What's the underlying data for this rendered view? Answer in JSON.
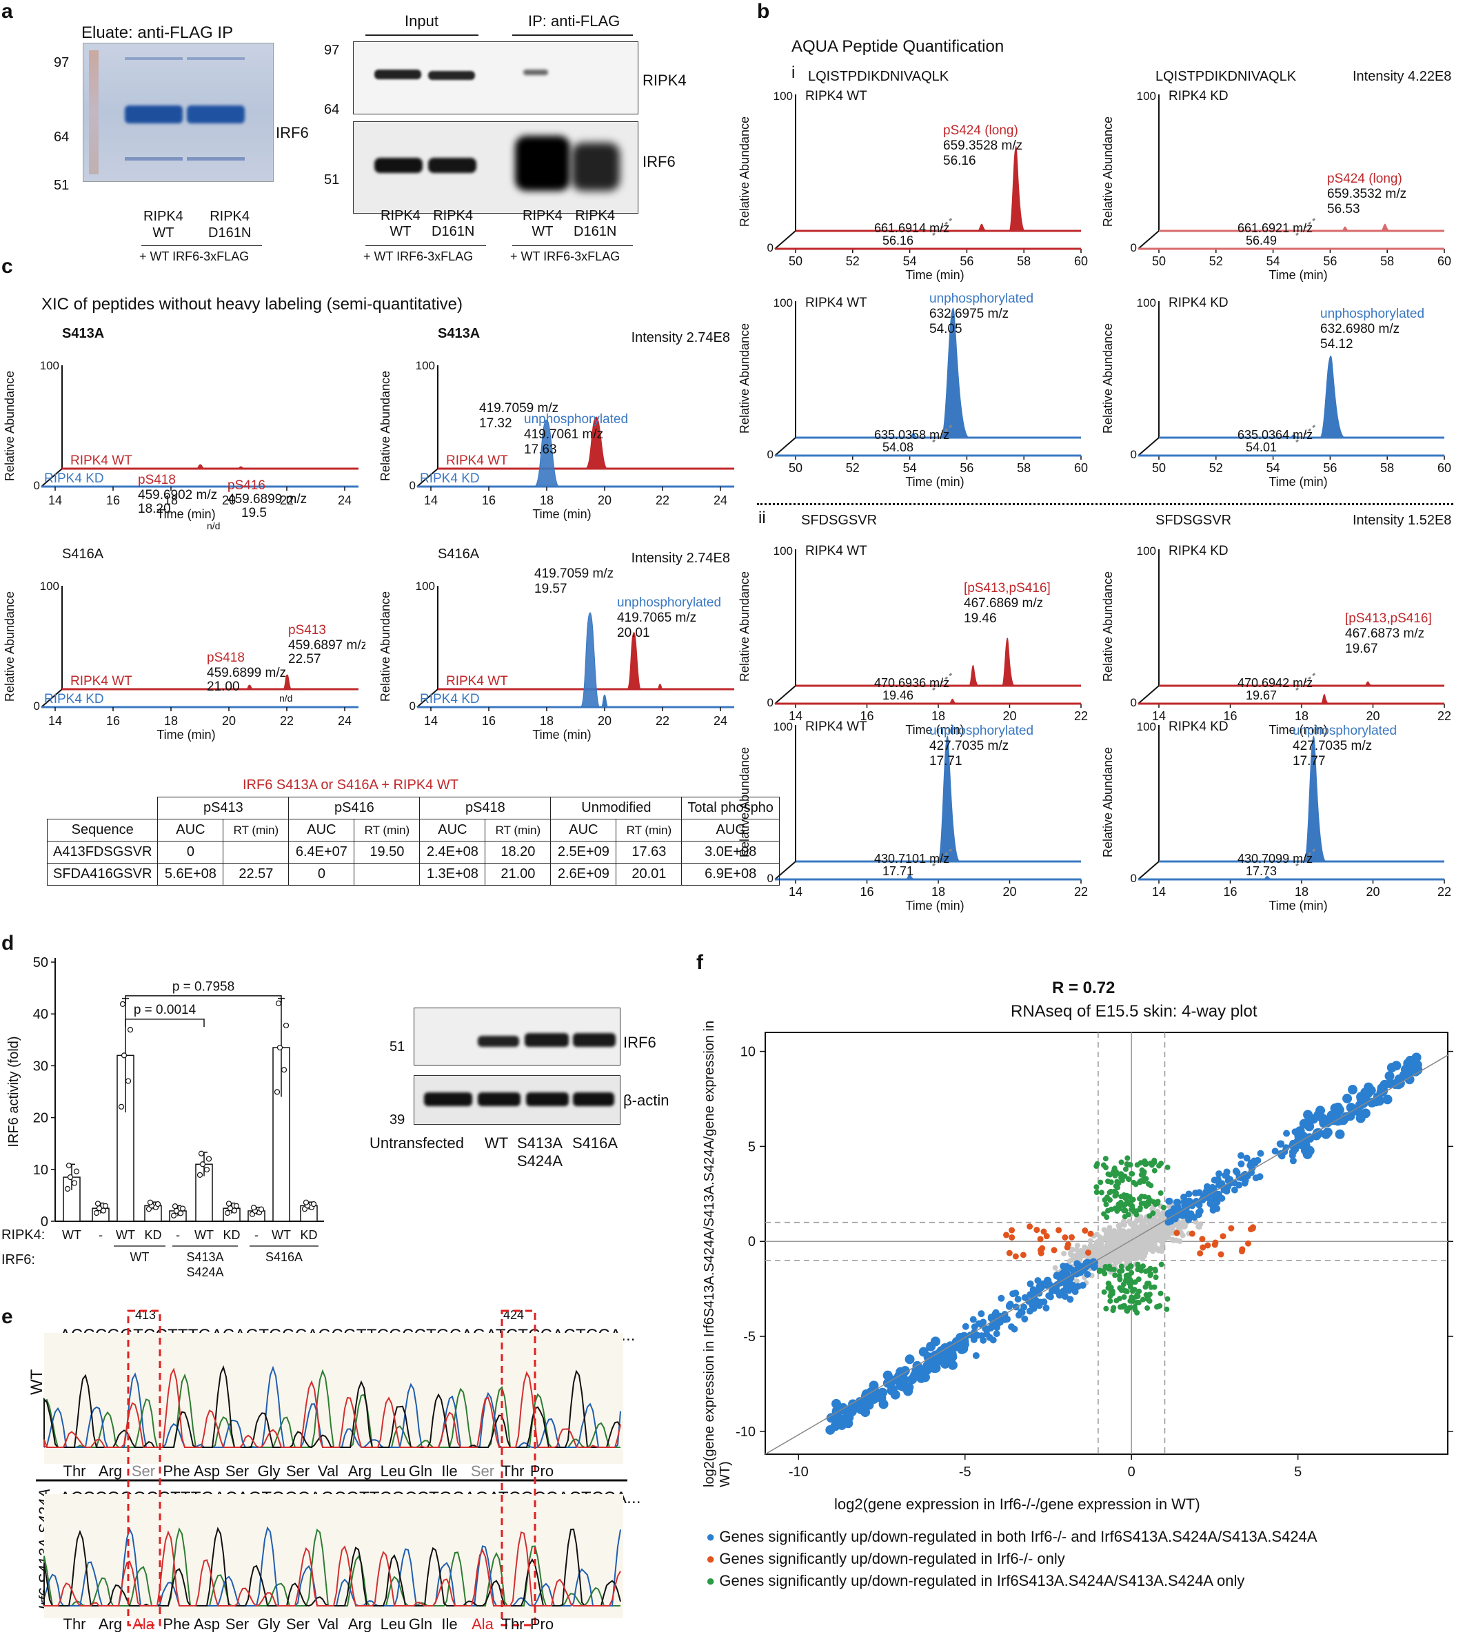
{
  "panel_letters": {
    "a": "a",
    "b": "b",
    "c": "c",
    "d": "d",
    "e": "e",
    "f": "f"
  },
  "a": {
    "gel_title": "Eluate: anti-FLAG IP",
    "gel_markers": [
      "97",
      "64",
      "51"
    ],
    "gel_band": "IRF6",
    "gel_lanes": [
      "RIPK4\nWT",
      "RIPK4\nD161N"
    ],
    "gel_footer": "+ WT IRF6-3xFLAG",
    "wb_headers": [
      "Input",
      "IP: anti-FLAG"
    ],
    "wb_markers_top": [
      "97",
      "64"
    ],
    "wb_marker_bottom": "51",
    "wb_bands": [
      "RIPK4",
      "IRF6"
    ],
    "wb_lane_labels": [
      "RIPK4",
      "RIPK4",
      "RIPK4",
      "RIPK4"
    ],
    "wb_lane_labels2": [
      "WT",
      "D161N",
      "WT",
      "D161N"
    ],
    "wb_footers": [
      "+ WT IRF6-3xFLAG",
      "+ WT IRF6-3xFLAG"
    ]
  },
  "b": {
    "title": "AQUA Peptide Quantification",
    "sec_i": "i",
    "sec_ii": "ii",
    "pep1": "LQISTPDIKDNIVAQLK",
    "pep2": "SFDSGSVR",
    "int1": "Intensity 4.22E8",
    "int2": "Intensity 1.52E8",
    "ylab": "Relative Abundance",
    "xlab": "Time (min)",
    "plots": [
      {
        "cond": "RIPK4 WT",
        "hi": "pS424 (long)",
        "hi_mz": "659.3528 m/z",
        "hi_rt": "56.16",
        "lo_mz": "661.6914 m/z",
        "lo_rt": "56.16"
      },
      {
        "cond": "RIPK4 KD",
        "hi": "pS424 (long)",
        "hi_mz": "659.3532 m/z",
        "hi_rt": "56.53",
        "lo_mz": "661.6921 m/z",
        "lo_rt": "56.49"
      },
      {
        "cond": "RIPK4 WT",
        "hi": "unphosphorylated",
        "hi_mz": "632.6975 m/z",
        "hi_rt": "54.05",
        "lo_mz": "635.0358 m/z",
        "lo_rt": "54.08"
      },
      {
        "cond": "RIPK4 KD",
        "hi": "unphosphorylated",
        "hi_mz": "632.6980 m/z",
        "hi_rt": "54.12",
        "lo_mz": "635.0364 m/z",
        "lo_rt": "54.01"
      },
      {
        "cond": "RIPK4 WT",
        "hi": "[pS413,pS416]",
        "hi_mz": "467.6869 m/z",
        "hi_rt": "19.46",
        "lo_mz": "470.6936 m/z",
        "lo_rt": "19.46"
      },
      {
        "cond": "RIPK4 KD",
        "hi": "[pS413,pS416]",
        "hi_mz": "467.6873 m/z",
        "hi_rt": "19.67",
        "lo_mz": "470.6942 m/z",
        "lo_rt": "19.67"
      },
      {
        "cond": "RIPK4 WT",
        "hi": "unphosphorylated",
        "hi_mz": "427.7035 m/z",
        "hi_rt": "17.71",
        "lo_mz": "430.7101 m/z",
        "lo_rt": "17.71"
      },
      {
        "cond": "RIPK4 KD",
        "hi": "unphosphorylated",
        "hi_mz": "427.7035 m/z",
        "hi_rt": "17.77",
        "lo_mz": "430.7099 m/z",
        "lo_rt": "17.73"
      }
    ],
    "xticks_i": [
      "50",
      "52",
      "54",
      "56",
      "58",
      "60"
    ],
    "xticks_ii": [
      "14",
      "16",
      "18",
      "20",
      "22"
    ],
    "y100": "100",
    "y0": "0"
  },
  "c": {
    "title": "XIC of peptides without heavy labeling (semi-quantitative)",
    "s413": "S413A",
    "s416": "S416A",
    "intensity": "Intensity 2.74E8",
    "ylab": "Relative Abundance",
    "xlab": "Time (min)",
    "wt": "RIPK4 WT",
    "kd": "RIPK4 KD",
    "nd": "n/d",
    "xticks": [
      "14",
      "16",
      "18",
      "20",
      "22",
      "24"
    ],
    "p1": {
      "a": "pS418",
      "a_mz": "459.6902 m/z",
      "a_rt": "18.20",
      "b": "pS416",
      "b_mz": "459.6899 m/z",
      "b_rt": "19.5"
    },
    "p2": {
      "a_mz": "419.7059 m/z",
      "a_rt": "17.32",
      "b": "unphosphorylated",
      "b_mz": "419.7061 m/z",
      "b_rt": "17.63"
    },
    "p3": {
      "a": "pS418",
      "a_mz": "459.6899 m/z",
      "a_rt": "21.00",
      "b": "pS413",
      "b_mz": "459.6897 m/z",
      "b_rt": "22.57"
    },
    "p4": {
      "a_mz": "419.7059 m/z",
      "a_rt": "19.57",
      "b": "unphosphorylated",
      "b_mz": "419.7065 m/z",
      "b_rt": "20.01"
    },
    "table_title": "IRF6 S413A or S416A + RIPK4 WT",
    "table_head1": [
      "pS413",
      "pS416",
      "pS418",
      "Unmodified",
      "Total phospho"
    ],
    "table_head2": [
      "Sequence",
      "AUC",
      "RT (min)",
      "AUC",
      "RT (min)",
      "AUC",
      "RT (min)",
      "AUC",
      "RT (min)",
      "AUC"
    ],
    "rows": [
      [
        "A413FDSGSVR",
        "0",
        "",
        "6.4E+07",
        "19.50",
        "2.4E+08",
        "18.20",
        "2.5E+09",
        "17.63",
        "3.0E+08"
      ],
      [
        "SFDA416GSVR",
        "5.6E+08",
        "22.57",
        "0",
        "",
        "1.3E+08",
        "21.00",
        "2.6E+09",
        "20.01",
        "6.9E+08"
      ]
    ]
  },
  "d": {
    "ylabel": "IRF6 activity (fold)",
    "yticks": [
      "0",
      "10",
      "20",
      "30",
      "40",
      "50"
    ],
    "p1": "p = 0.7958",
    "p2": "p = 0.0014",
    "ripk4_label": "RIPK4:",
    "irf6_label": "IRF6:",
    "ripk4": [
      "WT",
      "-",
      "WT",
      "KD",
      "-",
      "WT",
      "KD",
      "-",
      "WT",
      "KD"
    ],
    "irf6_groups": [
      "WT",
      "S413A\nS424A",
      "S416A"
    ],
    "blot_markers": [
      "51",
      "39"
    ],
    "blot_bands": [
      "IRF6",
      "β-actin"
    ],
    "blot_lanes": [
      "Untransfected",
      "WT",
      "S413A\nS424A",
      "S416A"
    ]
  },
  "e": {
    "pos1": "413",
    "pos2": "424",
    "wt_seq": "...ACCCGGTCCTTTGACAGTGGCAGCGTTCGCCTGCAGATCTCCACTCCA...",
    "mut_seq": "...ACCCGGGCCTTTGACAGTGGCAGCGTTCGCCTGCAGATCGCCACTCCA...",
    "wt_label": "WT",
    "mut_label": "Irf6 S413A,S424A",
    "wt_aa": [
      "Thr",
      "Arg",
      "Ser",
      "Phe",
      "Asp",
      "Ser",
      "Gly",
      "Ser",
      "Val",
      "Arg",
      "Leu",
      "Gln",
      "Ile",
      "Ser",
      "Thr",
      "Pro"
    ],
    "mut_aa": [
      "Thr",
      "Arg",
      "Ala",
      "Phe",
      "Asp",
      "Ser",
      "Gly",
      "Ser",
      "Val",
      "Arg",
      "Leu",
      "Gln",
      "Ile",
      "Ala",
      "Thr",
      "Pro"
    ]
  },
  "f": {
    "r": "R = 0.72",
    "subtitle": "RNAseq of E15.5 skin: 4-way plot",
    "xlabel": "log2(gene expression in Irf6-/-/gene expression in WT)",
    "ylabel": "log2(gene expression in Irf6S413A.S424A/S413A.S424A/gene expression in WT)",
    "legend": [
      "Genes significantly up/down-regulated in both Irf6-/- and Irf6S413A.S424A/S413A.S424A",
      "Genes significantly up/down-regulated in Irf6-/- only",
      "Genes significantly up/down-regulated in Irf6S413A.S424A/S413A.S424A only"
    ],
    "colors": {
      "both": "#2b7fd0",
      "ko_only": "#e2541d",
      "mut_only": "#2a9a45",
      "ns": "#c8c8c8"
    }
  },
  "chart_data": [
    {
      "type": "bar",
      "title": "",
      "ylabel": "IRF6 activity (fold)",
      "ylim": [
        0,
        50
      ],
      "categories": [
        "WT/WT",
        "-/WT",
        "WT/WT",
        "KD/WT",
        "-/S413A S424A",
        "WT/S413A S424A",
        "KD/S413A S424A",
        "-/S416A",
        "WT/S416A",
        "KD/S416A"
      ],
      "values": [
        8.5,
        2.5,
        32,
        3,
        2,
        11,
        2.5,
        2,
        33.5,
        3
      ],
      "errors": [
        2.5,
        1,
        11,
        0.7,
        1,
        2.3,
        1,
        0.7,
        9.5,
        0.7
      ]
    },
    {
      "type": "scatter",
      "title": "RNAseq of E15.5 skin: 4-way plot",
      "xlim": [
        -11,
        9.5
      ],
      "ylim": [
        -11.2,
        11
      ],
      "xlabel": "log2(gene expression in Irf6-/-/gene expression in WT)",
      "ylabel": "log2(gene expression in Irf6S413A.S424A/S413A.S424A/gene expression in WT)",
      "R": 0.72
    }
  ]
}
